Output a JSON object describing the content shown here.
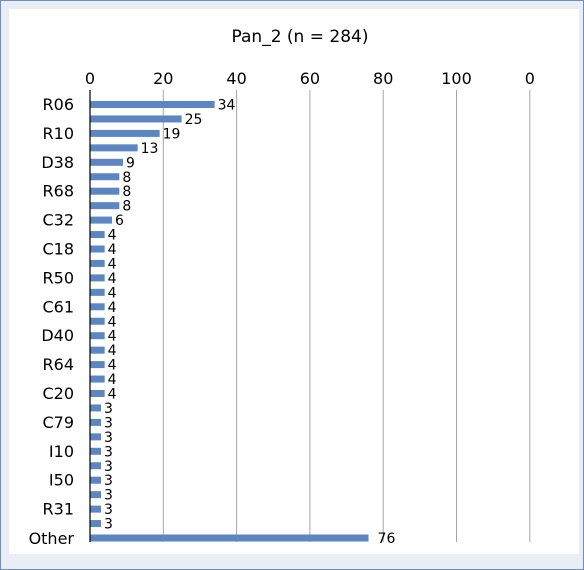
{
  "chart_data": {
    "type": "bar",
    "orientation": "horizontal",
    "title": "Pan_2 (n = 284)",
    "x_ticks": [
      "0",
      "20",
      "40",
      "60",
      "80",
      "100",
      "0"
    ],
    "xlim": [
      0,
      120
    ],
    "grid": true,
    "bar_color": "#5b86c2",
    "categories": [
      "R06",
      "",
      "R10",
      "",
      "D38",
      "",
      "R68",
      "",
      "C32",
      "",
      "C18",
      "",
      "R50",
      "",
      "C61",
      "",
      "D40",
      "",
      "R64",
      "",
      "C20",
      "",
      "C79",
      "",
      "I10",
      "",
      "I50",
      "",
      "R31",
      "",
      "Other"
    ],
    "values": [
      34,
      25,
      19,
      13,
      9,
      8,
      8,
      8,
      6,
      4,
      4,
      4,
      4,
      4,
      4,
      4,
      4,
      4,
      4,
      4,
      4,
      3,
      3,
      3,
      3,
      3,
      3,
      3,
      3,
      3,
      76
    ]
  }
}
